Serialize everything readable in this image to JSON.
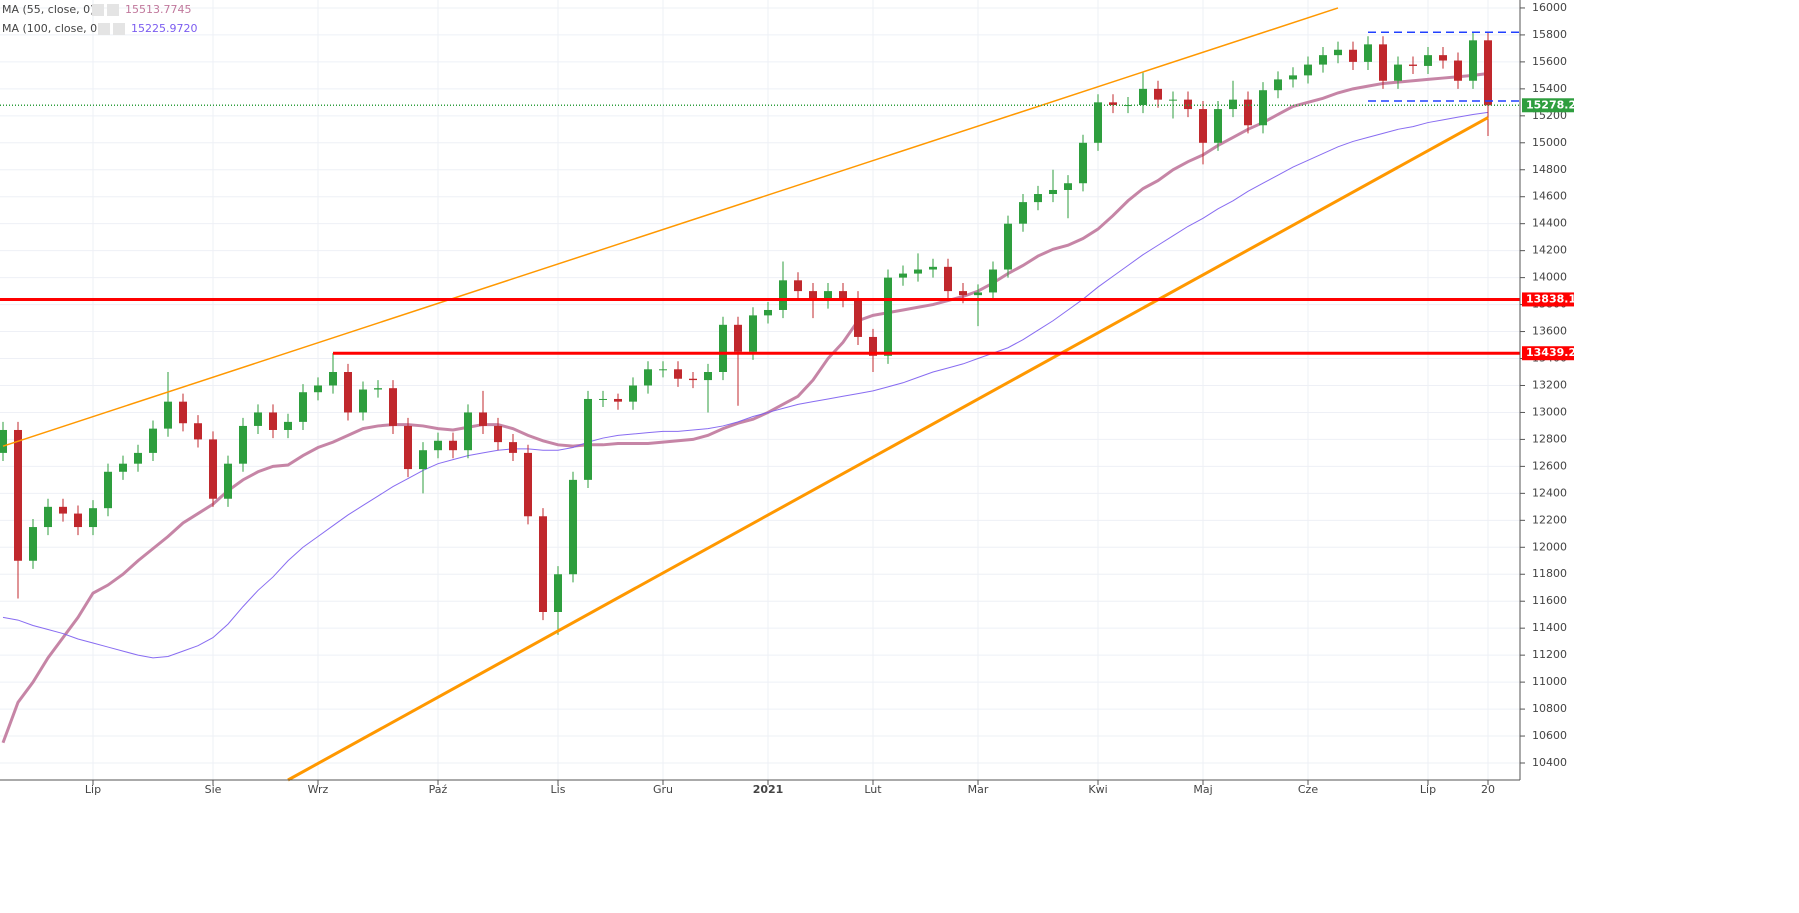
{
  "chart_data": {
    "type": "candlestick",
    "categories": [
      null,
      null,
      null,
      null,
      null,
      null,
      "Lip",
      null,
      null,
      null,
      null,
      null,
      null,
      null,
      "Sie",
      null,
      null,
      null,
      null,
      null,
      null,
      "Wrz",
      null,
      null,
      null,
      null,
      null,
      null,
      null,
      "Paź",
      null,
      null,
      null,
      null,
      null,
      null,
      null,
      "Lis",
      null,
      null,
      null,
      null,
      null,
      null,
      "Gru",
      null,
      null,
      null,
      null,
      null,
      null,
      "2021",
      null,
      null,
      null,
      null,
      null,
      null,
      "Lut",
      null,
      null,
      null,
      null,
      null,
      null,
      "Mar",
      null,
      null,
      null,
      null,
      null,
      null,
      null,
      "Kwi",
      null,
      null,
      null,
      null,
      null,
      null,
      "Maj",
      null,
      null,
      null,
      null,
      null,
      null,
      "Cze",
      null,
      null,
      null,
      null,
      null,
      null,
      null,
      "Lip",
      null,
      null,
      null,
      "20"
    ],
    "candles": {
      "open": [
        12700,
        12870,
        11900,
        12150,
        12300,
        12250,
        12150,
        12290,
        12560,
        12620,
        12700,
        12880,
        13080,
        12920,
        12800,
        12360,
        12620,
        12900,
        13000,
        12870,
        12930,
        13150,
        13200,
        13300,
        13000,
        13170,
        13180,
        12900,
        12580,
        12720,
        12790,
        12720,
        13000,
        12900,
        12780,
        12700,
        12230,
        11520,
        11800,
        12500,
        13100,
        13100,
        13080,
        13200,
        13320,
        13320,
        13250,
        13240,
        13300,
        13650,
        13450,
        13720,
        13760,
        13980,
        13900,
        13830,
        13900,
        13840,
        13560,
        13420,
        14000,
        14030,
        14060,
        14080,
        13900,
        13870,
        13890,
        14060,
        14400,
        14560,
        14620,
        14650,
        14700,
        15000,
        15300,
        15280,
        15280,
        15400,
        15320,
        15320,
        15250,
        15000,
        15250,
        15320,
        15130,
        15390,
        15470,
        15500,
        15580,
        15650,
        15690,
        15600,
        15730,
        15460,
        15580,
        15570,
        15650,
        15610,
        15460,
        15760
      ],
      "high": [
        12930,
        12930,
        12210,
        12360,
        12360,
        12310,
        12350,
        12620,
        12680,
        12760,
        12940,
        13300,
        13140,
        12980,
        12860,
        12680,
        12960,
        13060,
        13060,
        12990,
        13210,
        13260,
        13440,
        13360,
        13230,
        13240,
        13240,
        12960,
        12780,
        12850,
        12850,
        13060,
        13160,
        12960,
        12840,
        12760,
        12290,
        11860,
        12560,
        13160,
        13160,
        13140,
        13260,
        13380,
        13380,
        13380,
        13300,
        13360,
        13710,
        13710,
        13780,
        13820,
        14120,
        14040,
        13960,
        13960,
        13960,
        13900,
        13620,
        14060,
        14090,
        14180,
        14140,
        14140,
        13960,
        13950,
        14120,
        14460,
        14620,
        14680,
        14800,
        14760,
        15060,
        15360,
        15360,
        15340,
        15520,
        15460,
        15380,
        15380,
        15310,
        15310,
        15460,
        15380,
        15450,
        15530,
        15560,
        15640,
        15710,
        15750,
        15750,
        15790,
        15790,
        15640,
        15640,
        15710,
        15710,
        15670,
        15820,
        15820
      ],
      "low": [
        12640,
        11620,
        11840,
        12090,
        12190,
        12090,
        12090,
        12230,
        12500,
        12560,
        12640,
        12820,
        12860,
        12740,
        12300,
        12300,
        12560,
        12840,
        12810,
        12810,
        12870,
        13090,
        13140,
        12940,
        12940,
        13110,
        12840,
        12520,
        12400,
        12660,
        12660,
        12660,
        12840,
        12720,
        12640,
        12170,
        11460,
        11350,
        11740,
        12440,
        13040,
        13020,
        13020,
        13140,
        13260,
        13190,
        13180,
        13000,
        13240,
        13050,
        13390,
        13660,
        13700,
        13840,
        13700,
        13770,
        13780,
        13500,
        13300,
        13360,
        13940,
        13970,
        14000,
        13840,
        13810,
        13640,
        13830,
        14000,
        14340,
        14500,
        14560,
        14440,
        14640,
        14940,
        15220,
        15220,
        15220,
        15260,
        15180,
        15190,
        14840,
        14940,
        15190,
        15070,
        15070,
        15330,
        15410,
        15440,
        15520,
        15590,
        15540,
        15540,
        15400,
        15400,
        15510,
        15510,
        15550,
        15400,
        15400,
        15050
      ],
      "close": [
        12870,
        11900,
        12150,
        12300,
        12250,
        12150,
        12290,
        12560,
        12620,
        12700,
        12880,
        13080,
        12920,
        12800,
        12360,
        12620,
        12900,
        13000,
        12870,
        12930,
        13150,
        13200,
        13300,
        13000,
        13170,
        13180,
        12900,
        12580,
        12720,
        12790,
        12720,
        13000,
        12900,
        12780,
        12700,
        12230,
        11520,
        11800,
        12500,
        13100,
        13100,
        13080,
        13200,
        13320,
        13320,
        13250,
        13240,
        13300,
        13650,
        13450,
        13720,
        13760,
        13980,
        13900,
        13830,
        13900,
        13840,
        13560,
        13420,
        14000,
        14030,
        14060,
        14080,
        13900,
        13870,
        13890,
        14060,
        14400,
        14560,
        14620,
        14650,
        14700,
        15000,
        15300,
        15280,
        15280,
        15400,
        15320,
        15320,
        15250,
        15000,
        15250,
        15320,
        15130,
        15390,
        15470,
        15500,
        15580,
        15650,
        15690,
        15600,
        15730,
        15460,
        15580,
        15570,
        15650,
        15610,
        15460,
        15760,
        15278
      ]
    },
    "up_color": "#2e9e3e",
    "down_color": "#c0282d",
    "series": [
      {
        "name": "MA (55, close, 0)",
        "legend_value": "15513.7745",
        "color": "#c0789c",
        "width": 3,
        "values": [
          10550,
          10850,
          11000,
          11180,
          11330,
          11480,
          11660,
          11720,
          11800,
          11900,
          11990,
          12080,
          12180,
          12250,
          12320,
          12420,
          12500,
          12560,
          12600,
          12610,
          12680,
          12740,
          12780,
          12830,
          12880,
          12900,
          12910,
          12910,
          12900,
          12880,
          12870,
          12890,
          12910,
          12910,
          12880,
          12830,
          12790,
          12760,
          12750,
          12760,
          12760,
          12770,
          12770,
          12770,
          12780,
          12790,
          12800,
          12830,
          12880,
          12920,
          12950,
          13000,
          13060,
          13120,
          13240,
          13400,
          13520,
          13680,
          13720,
          13740,
          13760,
          13780,
          13800,
          13830,
          13860,
          13900,
          13960,
          14030,
          14090,
          14160,
          14210,
          14240,
          14290,
          14360,
          14460,
          14570,
          14660,
          14720,
          14800,
          14860,
          14910,
          14980,
          15040,
          15100,
          15150,
          15210,
          15270,
          15300,
          15330,
          15370,
          15400,
          15420,
          15440,
          15450,
          15460,
          15470,
          15480,
          15490,
          15500,
          15513.7745
        ]
      },
      {
        "name": "MA (100, close, 0)",
        "legend_value": "15225.9720",
        "color": "#7b5cf0",
        "width": 1,
        "values": [
          11480,
          11460,
          11420,
          11390,
          11360,
          11320,
          11290,
          11260,
          11230,
          11200,
          11180,
          11190,
          11230,
          11270,
          11330,
          11430,
          11560,
          11680,
          11780,
          11900,
          12000,
          12080,
          12160,
          12240,
          12310,
          12380,
          12450,
          12510,
          12570,
          12620,
          12650,
          12680,
          12700,
          12720,
          12730,
          12730,
          12720,
          12720,
          12740,
          12780,
          12810,
          12830,
          12840,
          12850,
          12860,
          12860,
          12870,
          12880,
          12900,
          12930,
          12970,
          13000,
          13030,
          13060,
          13080,
          13100,
          13120,
          13140,
          13160,
          13190,
          13220,
          13260,
          13300,
          13330,
          13360,
          13400,
          13440,
          13480,
          13540,
          13610,
          13680,
          13760,
          13840,
          13930,
          14010,
          14090,
          14170,
          14240,
          14310,
          14380,
          14440,
          14510,
          14570,
          14640,
          14700,
          14760,
          14820,
          14870,
          14920,
          14970,
          15010,
          15040,
          15070,
          15100,
          15120,
          15150,
          15170,
          15190,
          15210,
          15225.972
        ]
      }
    ],
    "trendlines": [
      {
        "from": [
          0,
          12750
        ],
        "to": [
          89,
          16000
        ],
        "color": "#ff9800",
        "width": 1.5
      },
      {
        "from": [
          19,
          10274
        ],
        "to": [
          99,
          15187
        ],
        "color": "#ff9800",
        "width": 3
      }
    ],
    "levels": [
      {
        "value": 13838.1,
        "from": 0,
        "color": "#ff0000",
        "style": "solid",
        "labelled": true
      },
      {
        "value": 13439.2,
        "from": 22,
        "color": "#ff0000",
        "style": "solid",
        "labelled": true
      },
      {
        "value": 15278.2,
        "from": 0,
        "color": "#2e9e3e",
        "style": "dotted",
        "labelled": true
      },
      {
        "value": 15820,
        "from": 91,
        "color": "#2040ff",
        "style": "dashed",
        "labelled": false
      },
      {
        "value": 15310,
        "from": 91,
        "color": "#2040ff",
        "style": "dashed",
        "labelled": false
      }
    ],
    "ylim": [
      10274,
      16059
    ],
    "yticks": [
      10400,
      10600,
      10800,
      11000,
      11200,
      11400,
      11600,
      11800,
      12000,
      12200,
      12400,
      12600,
      12800,
      13000,
      13200,
      13400,
      13600,
      13800,
      14000,
      14200,
      14400,
      14600,
      14800,
      15000,
      15200,
      15400,
      15600,
      15800,
      16000
    ],
    "grid": true
  }
}
